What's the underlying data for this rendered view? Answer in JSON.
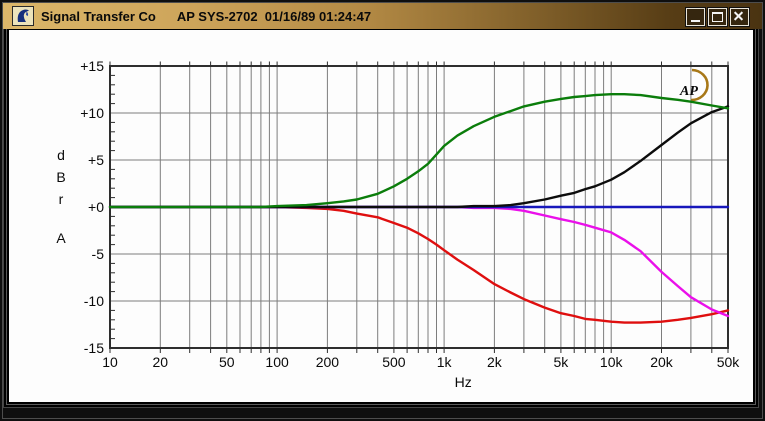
{
  "window": {
    "title_left": "Signal Transfer Co",
    "title_right": "AP SYS-2702  01/16/89 01:24:47",
    "controls": {
      "minimize": "Minimize",
      "maximize": "Maximize",
      "close": "Close"
    }
  },
  "chart_data": {
    "type": "line",
    "x_scale": "log",
    "x_range": [
      10,
      50000
    ],
    "ylim": [
      -15,
      15
    ],
    "y_major_step": 5,
    "y_minor_step": 1,
    "grid": true,
    "legend": "none",
    "xlabel": "Hz",
    "ylabel_stack": [
      "d",
      "B",
      "r"
    ],
    "ylabel_channel": "A",
    "logo_text": "AP",
    "y_ticks": [
      {
        "v": 15,
        "label": "+15"
      },
      {
        "v": 10,
        "label": "+10"
      },
      {
        "v": 5,
        "label": "+5"
      },
      {
        "v": 0,
        "label": "+0"
      },
      {
        "v": -5,
        "label": "-5"
      },
      {
        "v": -10,
        "label": "-10"
      },
      {
        "v": -15,
        "label": "-15"
      }
    ],
    "x_ticks": [
      {
        "f": 10,
        "label": "10"
      },
      {
        "f": 20,
        "label": "20"
      },
      {
        "f": 50,
        "label": "50"
      },
      {
        "f": 100,
        "label": "100"
      },
      {
        "f": 200,
        "label": "200"
      },
      {
        "f": 500,
        "label": "500"
      },
      {
        "f": 1000,
        "label": "1k"
      },
      {
        "f": 2000,
        "label": "2k"
      },
      {
        "f": 5000,
        "label": "5k"
      },
      {
        "f": 10000,
        "label": "10k"
      },
      {
        "f": 20000,
        "label": "20k"
      },
      {
        "f": 50000,
        "label": "50k"
      }
    ],
    "colors": {
      "grid": "#7d7d7d",
      "border": "#2e2e2e",
      "page": "#fdfdfd",
      "logo": "#a87818"
    },
    "x": [
      10,
      15,
      20,
      30,
      40,
      50,
      60,
      80,
      100,
      150,
      200,
      250,
      300,
      400,
      500,
      600,
      700,
      800,
      900,
      1000,
      1200,
      1500,
      2000,
      2500,
      3000,
      4000,
      5000,
      6000,
      7000,
      8000,
      10000,
      12000,
      15000,
      20000,
      25000,
      30000,
      40000,
      50000
    ],
    "series": [
      {
        "name": "hf-cut-shelf-red",
        "color": "#df0f0f",
        "values": [
          0,
          0,
          0,
          0,
          0,
          0,
          0,
          0,
          0,
          -0.1,
          -0.2,
          -0.4,
          -0.7,
          -1.1,
          -1.7,
          -2.2,
          -2.8,
          -3.4,
          -4.0,
          -4.6,
          -5.6,
          -6.7,
          -8.2,
          -9.1,
          -9.8,
          -10.7,
          -11.3,
          -11.6,
          -11.9,
          -12.0,
          -12.2,
          -12.3,
          -12.3,
          -12.2,
          -12.0,
          -11.8,
          -11.4,
          -11.0
        ]
      },
      {
        "name": "hf-rolloff-magenta",
        "color": "#ea10ea",
        "values": [
          0,
          0,
          0,
          0,
          0,
          0,
          0,
          0,
          0,
          0,
          0,
          0,
          0,
          0,
          0,
          0,
          0,
          0,
          0,
          0,
          0,
          -0.1,
          -0.1,
          -0.2,
          -0.4,
          -0.9,
          -1.3,
          -1.6,
          -1.9,
          -2.2,
          -2.7,
          -3.5,
          -4.7,
          -6.9,
          -8.4,
          -9.6,
          -10.9,
          -11.6
        ]
      },
      {
        "name": "flat-reference-blue",
        "color": "#1717bb",
        "values": [
          0,
          0,
          0,
          0,
          0,
          0,
          0,
          0,
          0,
          0,
          0,
          0,
          0,
          0,
          0,
          0,
          0,
          0,
          0,
          0,
          0,
          0,
          0,
          0,
          0,
          0,
          0,
          0,
          0,
          0,
          0,
          0,
          0,
          0,
          0,
          0,
          0,
          0
        ]
      },
      {
        "name": "hf-rise-black",
        "color": "#0c0c0c",
        "values": [
          0,
          0,
          0,
          0,
          0,
          0,
          0,
          0,
          0,
          0,
          0,
          0,
          0,
          0,
          0,
          0,
          0,
          0,
          0,
          0,
          0,
          0.1,
          0.1,
          0.2,
          0.4,
          0.8,
          1.2,
          1.5,
          1.9,
          2.2,
          2.9,
          3.7,
          4.9,
          6.6,
          7.9,
          8.9,
          10.1,
          10.7
        ]
      },
      {
        "name": "hf-boost-shelf-green",
        "color": "#0b7d0b",
        "values": [
          0,
          0,
          0,
          0,
          0,
          0,
          0,
          0,
          0.1,
          0.2,
          0.4,
          0.6,
          0.8,
          1.4,
          2.2,
          3.0,
          3.8,
          4.6,
          5.6,
          6.5,
          7.6,
          8.6,
          9.6,
          10.2,
          10.7,
          11.2,
          11.5,
          11.7,
          11.8,
          11.9,
          12.0,
          12.0,
          11.9,
          11.6,
          11.4,
          11.2,
          10.8,
          10.5
        ]
      }
    ]
  }
}
